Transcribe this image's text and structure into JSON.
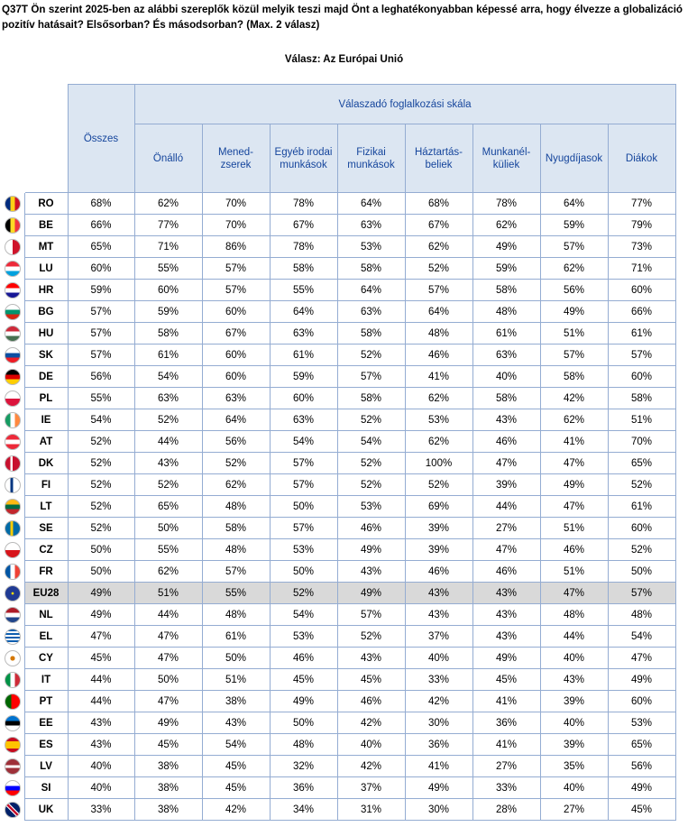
{
  "question": "Q37T Ön szerint 2025-ben az alábbi szereplők közül melyik teszi majd Önt a leghatékonyabban képessé arra, hogy élvezze a globalizáció pozitív hatásait? Elsősorban? És másodsorban? (Max. 2 válasz)",
  "answer_title": "Válasz: Az Európai Unió",
  "header": {
    "total": "Összes",
    "group": "Válaszadó foglalkozási skála",
    "columns": [
      "Önálló",
      "Mened-\nzserek",
      "Egyéb irodai\nmunkások",
      "Fizikai\nmunkások",
      "Háztartás-\nbeliek",
      "Munkanél-\nküliek",
      "Nyugdíjasok",
      "Diákok"
    ]
  },
  "rows": [
    {
      "country": "RO",
      "flag": "linear-gradient(to right,#002b7f 33.3%,#fcd116 33.3% 66.6%,#ce1126 66.6%)",
      "values": [
        "68%",
        "62%",
        "70%",
        "78%",
        "64%",
        "68%",
        "78%",
        "64%",
        "77%"
      ]
    },
    {
      "country": "BE",
      "flag": "linear-gradient(to right,#000 33.3%,#fdda24 33.3% 66.6%,#ef3340 66.6%)",
      "values": [
        "66%",
        "77%",
        "70%",
        "67%",
        "63%",
        "67%",
        "62%",
        "59%",
        "79%"
      ]
    },
    {
      "country": "MT",
      "flag": "linear-gradient(to right,#fff 50%,#cf142b 50%)",
      "values": [
        "65%",
        "71%",
        "86%",
        "78%",
        "53%",
        "62%",
        "49%",
        "57%",
        "73%"
      ]
    },
    {
      "country": "LU",
      "flag": "linear-gradient(#ed2939 33.3%,#fff 33.3% 66.6%,#00a1de 66.6%)",
      "values": [
        "60%",
        "55%",
        "57%",
        "58%",
        "58%",
        "52%",
        "59%",
        "62%",
        "71%"
      ]
    },
    {
      "country": "HR",
      "flag": "linear-gradient(#ff0000 33.3%,#fff 33.3% 66.6%,#171796 66.6%)",
      "values": [
        "59%",
        "60%",
        "57%",
        "55%",
        "64%",
        "57%",
        "58%",
        "56%",
        "60%"
      ]
    },
    {
      "country": "BG",
      "flag": "linear-gradient(#fff 33.3%,#00966e 33.3% 66.6%,#d62612 66.6%)",
      "values": [
        "57%",
        "59%",
        "60%",
        "64%",
        "63%",
        "64%",
        "48%",
        "49%",
        "66%"
      ]
    },
    {
      "country": "HU",
      "flag": "linear-gradient(#ce2939 33.3%,#fff 33.3% 66.6%,#477050 66.6%)",
      "values": [
        "57%",
        "58%",
        "67%",
        "63%",
        "58%",
        "48%",
        "61%",
        "51%",
        "61%"
      ]
    },
    {
      "country": "SK",
      "flag": "linear-gradient(#fff 33.3%,#0b4ea2 33.3% 66.6%,#ee1c25 66.6%)",
      "values": [
        "57%",
        "61%",
        "60%",
        "61%",
        "52%",
        "46%",
        "63%",
        "57%",
        "57%"
      ]
    },
    {
      "country": "DE",
      "flag": "linear-gradient(#000 33.3%,#dd0000 33.3% 66.6%,#ffce00 66.6%)",
      "values": [
        "56%",
        "54%",
        "60%",
        "59%",
        "57%",
        "41%",
        "40%",
        "58%",
        "60%"
      ]
    },
    {
      "country": "PL",
      "flag": "linear-gradient(#fff 50%,#dc143c 50%)",
      "values": [
        "55%",
        "63%",
        "63%",
        "60%",
        "58%",
        "62%",
        "58%",
        "42%",
        "58%"
      ]
    },
    {
      "country": "IE",
      "flag": "linear-gradient(to right,#169b62 33.3%,#fff 33.3% 66.6%,#ff883e 66.6%)",
      "values": [
        "54%",
        "52%",
        "64%",
        "63%",
        "52%",
        "53%",
        "43%",
        "62%",
        "51%"
      ]
    },
    {
      "country": "AT",
      "flag": "linear-gradient(#ed2939 33.3%,#fff 33.3% 66.6%,#ed2939 66.6%)",
      "values": [
        "52%",
        "44%",
        "56%",
        "54%",
        "54%",
        "62%",
        "46%",
        "41%",
        "70%"
      ]
    },
    {
      "country": "DK",
      "flag": "linear-gradient(to right,#c8102e 35%,#fff 35% 50%,#c8102e 50%)",
      "values": [
        "52%",
        "43%",
        "52%",
        "57%",
        "52%",
        "100%",
        "47%",
        "47%",
        "65%"
      ]
    },
    {
      "country": "FI",
      "flag": "linear-gradient(to right,#fff 35%,#003580 35% 52%,#fff 52%)",
      "values": [
        "52%",
        "52%",
        "62%",
        "57%",
        "52%",
        "52%",
        "39%",
        "49%",
        "52%"
      ]
    },
    {
      "country": "LT",
      "flag": "linear-gradient(#fdb913 33.3%,#006a44 33.3% 66.6%,#c1272d 66.6%)",
      "values": [
        "52%",
        "65%",
        "48%",
        "50%",
        "53%",
        "69%",
        "44%",
        "47%",
        "61%"
      ]
    },
    {
      "country": "SE",
      "flag": "linear-gradient(to right,#006aa7 35%,#fecc00 35% 52%,#006aa7 52%)",
      "values": [
        "52%",
        "50%",
        "58%",
        "57%",
        "46%",
        "39%",
        "27%",
        "51%",
        "60%"
      ]
    },
    {
      "country": "CZ",
      "flag": "linear-gradient(#fff 50%,#d7141a 50%)",
      "values": [
        "50%",
        "55%",
        "48%",
        "53%",
        "49%",
        "39%",
        "47%",
        "46%",
        "52%"
      ]
    },
    {
      "country": "FR",
      "flag": "linear-gradient(to right,#0055a4 33.3%,#fff 33.3% 66.6%,#ef4135 66.6%)",
      "values": [
        "50%",
        "62%",
        "57%",
        "50%",
        "43%",
        "46%",
        "46%",
        "51%",
        "50%"
      ]
    },
    {
      "country": "EU28",
      "flag": "radial-gradient(circle,#ffdd00 0 12%,#1f3a93 13%)",
      "eu": true,
      "values": [
        "49%",
        "51%",
        "55%",
        "52%",
        "49%",
        "43%",
        "43%",
        "47%",
        "57%"
      ]
    },
    {
      "country": "NL",
      "flag": "linear-gradient(#ae1c28 33.3%,#fff 33.3% 66.6%,#21468b 66.6%)",
      "values": [
        "49%",
        "44%",
        "48%",
        "54%",
        "57%",
        "43%",
        "43%",
        "48%",
        "48%"
      ]
    },
    {
      "country": "EL",
      "flag": "repeating-linear-gradient(#0d5eaf 0 2px,#fff 2px 4px)",
      "values": [
        "47%",
        "47%",
        "61%",
        "53%",
        "52%",
        "37%",
        "43%",
        "44%",
        "54%"
      ]
    },
    {
      "country": "CY",
      "flag": "radial-gradient(ellipse at center,#d57800 0 22%,#fff 24%)",
      "values": [
        "45%",
        "47%",
        "50%",
        "46%",
        "43%",
        "40%",
        "49%",
        "40%",
        "47%"
      ]
    },
    {
      "country": "IT",
      "flag": "linear-gradient(to right,#009246 33.3%,#fff 33.3% 66.6%,#ce2b37 66.6%)",
      "values": [
        "44%",
        "50%",
        "51%",
        "45%",
        "45%",
        "33%",
        "45%",
        "43%",
        "49%"
      ]
    },
    {
      "country": "PT",
      "flag": "linear-gradient(to right,#006600 40%,#ff0000 40%)",
      "values": [
        "44%",
        "47%",
        "38%",
        "49%",
        "46%",
        "42%",
        "41%",
        "39%",
        "60%"
      ]
    },
    {
      "country": "EE",
      "flag": "linear-gradient(#0072ce 33.3%,#000 33.3% 66.6%,#fff 66.6%)",
      "values": [
        "43%",
        "49%",
        "43%",
        "50%",
        "42%",
        "30%",
        "36%",
        "40%",
        "53%"
      ]
    },
    {
      "country": "ES",
      "flag": "linear-gradient(#c60b1e 25%,#ffc400 25% 75%,#c60b1e 75%)",
      "values": [
        "43%",
        "45%",
        "54%",
        "48%",
        "40%",
        "36%",
        "41%",
        "39%",
        "65%"
      ]
    },
    {
      "country": "LV",
      "flag": "linear-gradient(#9e3039 40%,#fff 40% 60%,#9e3039 60%)",
      "values": [
        "40%",
        "38%",
        "45%",
        "32%",
        "42%",
        "41%",
        "27%",
        "35%",
        "56%"
      ]
    },
    {
      "country": "SI",
      "flag": "linear-gradient(#fff 33.3%,#0000ff 33.3% 66.6%,#ff0000 66.6%)",
      "values": [
        "40%",
        "38%",
        "45%",
        "36%",
        "37%",
        "49%",
        "33%",
        "40%",
        "49%"
      ]
    },
    {
      "country": "UK",
      "flag": "linear-gradient(45deg,#012169 40%,#fff 40% 45%,#c8102e 45% 55%,#fff 55% 60%,#012169 60%)",
      "values": [
        "33%",
        "38%",
        "42%",
        "34%",
        "31%",
        "30%",
        "28%",
        "27%",
        "45%"
      ]
    }
  ]
}
